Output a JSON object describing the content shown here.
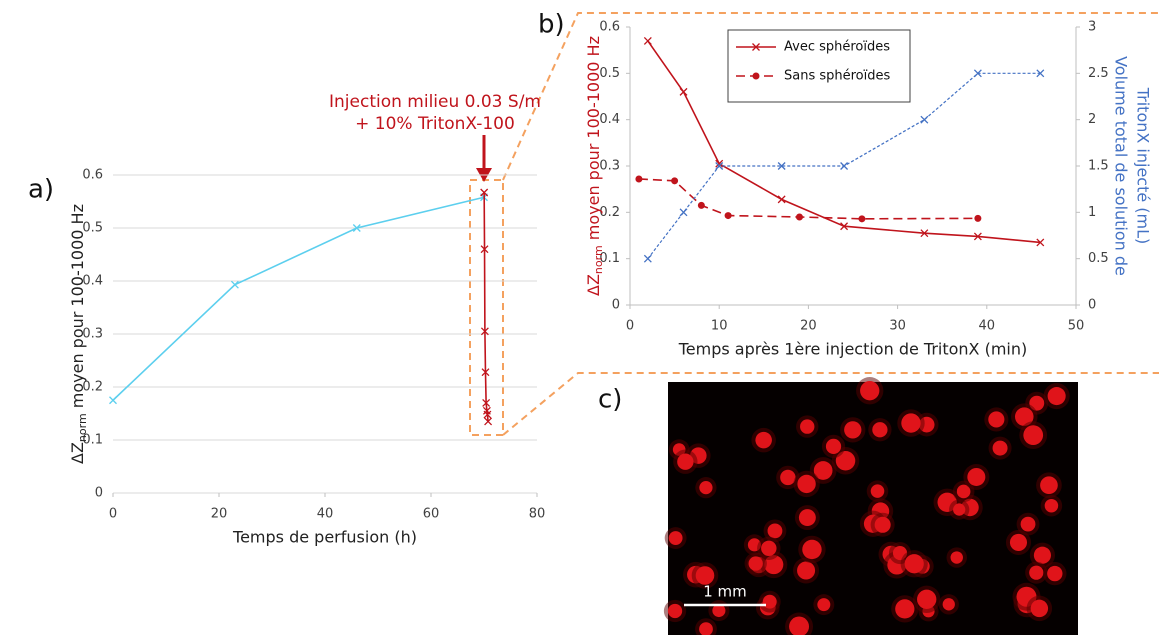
{
  "chart_data": [
    {
      "type": "line",
      "panel_label": "a)",
      "xlabel": "Temps de perfusion (h)",
      "ylabel": [
        "ΔZ",
        "norm",
        " moyen pour 100-1000 Hz"
      ],
      "xlim": [
        0,
        80
      ],
      "xticks": [
        0,
        20,
        40,
        60,
        80
      ],
      "ylim": [
        0,
        0.6
      ],
      "yticks": [
        0,
        0.1,
        0.2,
        0.3,
        0.4,
        0.5,
        0.6
      ],
      "grid": true,
      "annotation": [
        "Injection milieu 0.03 S/m",
        "+ 10% TritonX-100"
      ],
      "series": [
        {
          "color": "#5ccfee",
          "marker": "x",
          "dash": false,
          "x": [
            0,
            23,
            46,
            70
          ],
          "values": [
            0.175,
            0.393,
            0.5,
            0.558
          ]
        },
        {
          "color": "#c0141c",
          "marker": "x",
          "dash": false,
          "x": [
            70.03,
            70.1,
            70.17,
            70.28,
            70.4,
            70.55,
            70.65,
            70.77
          ],
          "values": [
            0.567,
            0.46,
            0.305,
            0.228,
            0.17,
            0.155,
            0.148,
            0.135
          ]
        }
      ]
    },
    {
      "type": "line",
      "panel_label": "b)",
      "xlabel": "Temps après 1ère injection de TritonX (min)",
      "ylabel": [
        "ΔZ",
        "norm",
        " moyen pour 100-1000 Hz"
      ],
      "y2label": [
        "Volume  total de solution de",
        "TritonX injecté (mL)"
      ],
      "xlim": [
        0,
        50
      ],
      "xticks": [
        0,
        10,
        20,
        30,
        40,
        50
      ],
      "ylim": [
        0,
        0.6
      ],
      "yticks": [
        0,
        0.1,
        0.2,
        0.3,
        0.4,
        0.5,
        0.6
      ],
      "y2lim": [
        0,
        3
      ],
      "y2ticks": [
        0,
        0.5,
        1,
        1.5,
        2,
        2.5,
        3
      ],
      "grid": false,
      "legend": "top-center",
      "series": [
        {
          "name": "Avec sphéroïdes",
          "color": "#c0141c",
          "marker": "x",
          "dash": false,
          "x": [
            2,
            6,
            10,
            17,
            24,
            33,
            39,
            46
          ],
          "values": [
            0.57,
            0.46,
            0.305,
            0.228,
            0.17,
            0.155,
            0.148,
            0.135
          ]
        },
        {
          "name": "Sans sphéroïdes",
          "color": "#c0141c",
          "marker": "o",
          "dash": true,
          "x": [
            1,
            5,
            8,
            11,
            19,
            26,
            39
          ],
          "values": [
            0.272,
            0.268,
            0.215,
            0.193,
            0.19,
            0.186,
            0.187
          ]
        },
        {
          "color": "#4472c4",
          "marker": "x",
          "dash": true,
          "thin": true,
          "axis": "y2",
          "x": [
            2,
            6,
            10,
            17,
            24,
            33,
            39,
            46
          ],
          "values": [
            0.5,
            1,
            1.5,
            1.5,
            1.5,
            2,
            2.5,
            2.5
          ]
        }
      ]
    }
  ],
  "image_panel": {
    "panel_label": "c)",
    "scale_bar": "1 mm"
  }
}
